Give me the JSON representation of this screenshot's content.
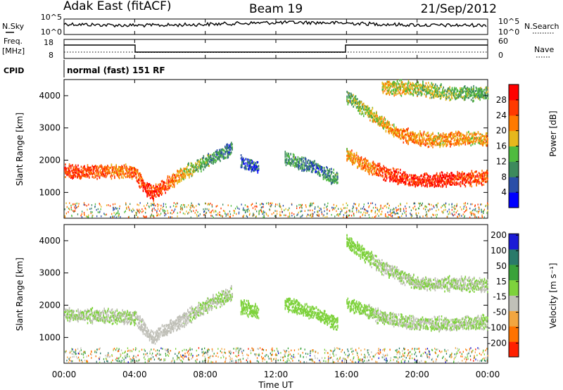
{
  "header": {
    "site": "Adak East (fitACF)",
    "beam": "Beam 19",
    "date": "21/Sep/2012"
  },
  "nsky_panel": {
    "left_label": "N.Sky",
    "right_label": "N.Search",
    "left_ticks": [
      "10^5",
      "10^0"
    ],
    "right_ticks": [
      "10^5",
      "10^0"
    ]
  },
  "freq_panel": {
    "left_label_1": "Freq.",
    "left_label_2": "[MHz]",
    "left_ticks": [
      "18",
      "8"
    ],
    "right_ticks": [
      "60",
      "0"
    ],
    "right_label": "Nave",
    "cpid_label": "CPID",
    "cpid_text": "normal (fast) 151 RF"
  },
  "chart_data": [
    {
      "type": "heatmap",
      "name": "power",
      "ylabel": "Slant Range [km]",
      "yticks": [
        1000,
        2000,
        3000,
        4000
      ],
      "ylim": [
        200,
        4500
      ],
      "colorbar_label": "Power [dB]",
      "colorbar_ticks": [
        "4",
        "8",
        "12",
        "16",
        "20",
        "24",
        "28"
      ],
      "colorbar_range": [
        0,
        32
      ],
      "colors": [
        "#0000ff",
        "#2a4ea8",
        "#3d8a5c",
        "#4fbb3e",
        "#e6b81c",
        "#ff7a00",
        "#ff3a00",
        "#ff0000"
      ],
      "echo_bands": [
        {
          "time": [
            0.0,
            1.0,
            2.0,
            3.0,
            4.0,
            4.5,
            5.0,
            6.0,
            7.0,
            8.0,
            9.5
          ],
          "range": [
            1700,
            1650,
            1700,
            1680,
            1650,
            1200,
            1000,
            1350,
            1700,
            2000,
            2400
          ],
          "power": [
            26,
            26,
            24,
            22,
            24,
            26,
            28,
            24,
            16,
            12,
            8
          ]
        },
        {
          "time": [
            16.0,
            17.0,
            18.0,
            19.0,
            20.0,
            21.0,
            22.0,
            23.0,
            24.0
          ],
          "range": [
            2200,
            1900,
            1650,
            1500,
            1400,
            1400,
            1450,
            1450,
            1500
          ],
          "power": [
            20,
            22,
            26,
            28,
            28,
            28,
            28,
            26,
            26
          ]
        },
        {
          "time": [
            16.0,
            17.0,
            18.0,
            19.0,
            20.0,
            21.0,
            22.0,
            23.0,
            24.0
          ],
          "range": [
            4000,
            3600,
            3200,
            2850,
            2700,
            2650,
            2700,
            2700,
            2650
          ],
          "power": [
            12,
            16,
            18,
            22,
            22,
            20,
            22,
            20,
            20
          ]
        },
        {
          "time": [
            18.0,
            20.0,
            22.0,
            24.0
          ],
          "range": [
            4300,
            4250,
            4100,
            4100
          ],
          "power": [
            18,
            16,
            14,
            12
          ]
        },
        {
          "time": [
            12.5,
            13.0,
            13.5,
            14.0,
            14.5,
            15.0,
            15.5
          ],
          "range": [
            2100,
            2000,
            1900,
            1850,
            1700,
            1550,
            1450
          ],
          "power": [
            10,
            12,
            10,
            8,
            8,
            10,
            12
          ]
        },
        {
          "time": [
            10.0,
            10.5,
            11.0
          ],
          "range": [
            2000,
            1900,
            1800
          ],
          "power": [
            6,
            6,
            6
          ]
        }
      ]
    },
    {
      "type": "heatmap",
      "name": "velocity",
      "ylabel": "Slant Range [km]",
      "yticks": [
        1000,
        2000,
        3000,
        4000
      ],
      "ylim": [
        200,
        4500
      ],
      "colorbar_label": "Velocity [m s⁻¹]",
      "colorbar_ticks": [
        "200",
        "100",
        "50",
        "15",
        "-15",
        "-50",
        "-100",
        "-200"
      ],
      "colorbar_range": [
        -250,
        250
      ],
      "colors": [
        "#1b1bd6",
        "#2a7a6a",
        "#3aa23a",
        "#7ed23c",
        "#c0c0b8",
        "#f2a640",
        "#ff7300",
        "#ff2000"
      ],
      "echo_bands": [
        {
          "time": [
            0.0,
            2.0,
            4.0,
            5.0,
            6.0,
            8.0,
            9.5
          ],
          "range": [
            1750,
            1700,
            1650,
            1000,
            1350,
            2000,
            2400
          ],
          "velocity": [
            0,
            0,
            0,
            -40,
            -20,
            0,
            0
          ]
        },
        {
          "time": [
            16.0,
            18.0,
            20.0,
            22.0,
            24.0
          ],
          "range": [
            2100,
            1650,
            1450,
            1450,
            1500
          ],
          "velocity": [
            20,
            0,
            0,
            0,
            0
          ]
        },
        {
          "time": [
            16.0,
            18.0,
            20.0,
            22.0,
            24.0
          ],
          "range": [
            4000,
            3200,
            2700,
            2700,
            2650
          ],
          "velocity": [
            30,
            0,
            0,
            0,
            0
          ]
        },
        {
          "time": [
            12.5,
            13.5,
            14.5,
            15.5
          ],
          "range": [
            2100,
            1900,
            1700,
            1450
          ],
          "velocity": [
            40,
            40,
            40,
            40
          ]
        },
        {
          "time": [
            10.0,
            10.5,
            11.0
          ],
          "range": [
            2000,
            1900,
            1800
          ],
          "velocity": [
            40,
            40,
            40
          ]
        }
      ]
    }
  ],
  "x_axis": {
    "label": "Time UT",
    "ticks": [
      "00:00",
      "04:00",
      "08:00",
      "12:00",
      "16:00",
      "20:00",
      "00:00"
    ],
    "range_hours": [
      0,
      24
    ]
  }
}
